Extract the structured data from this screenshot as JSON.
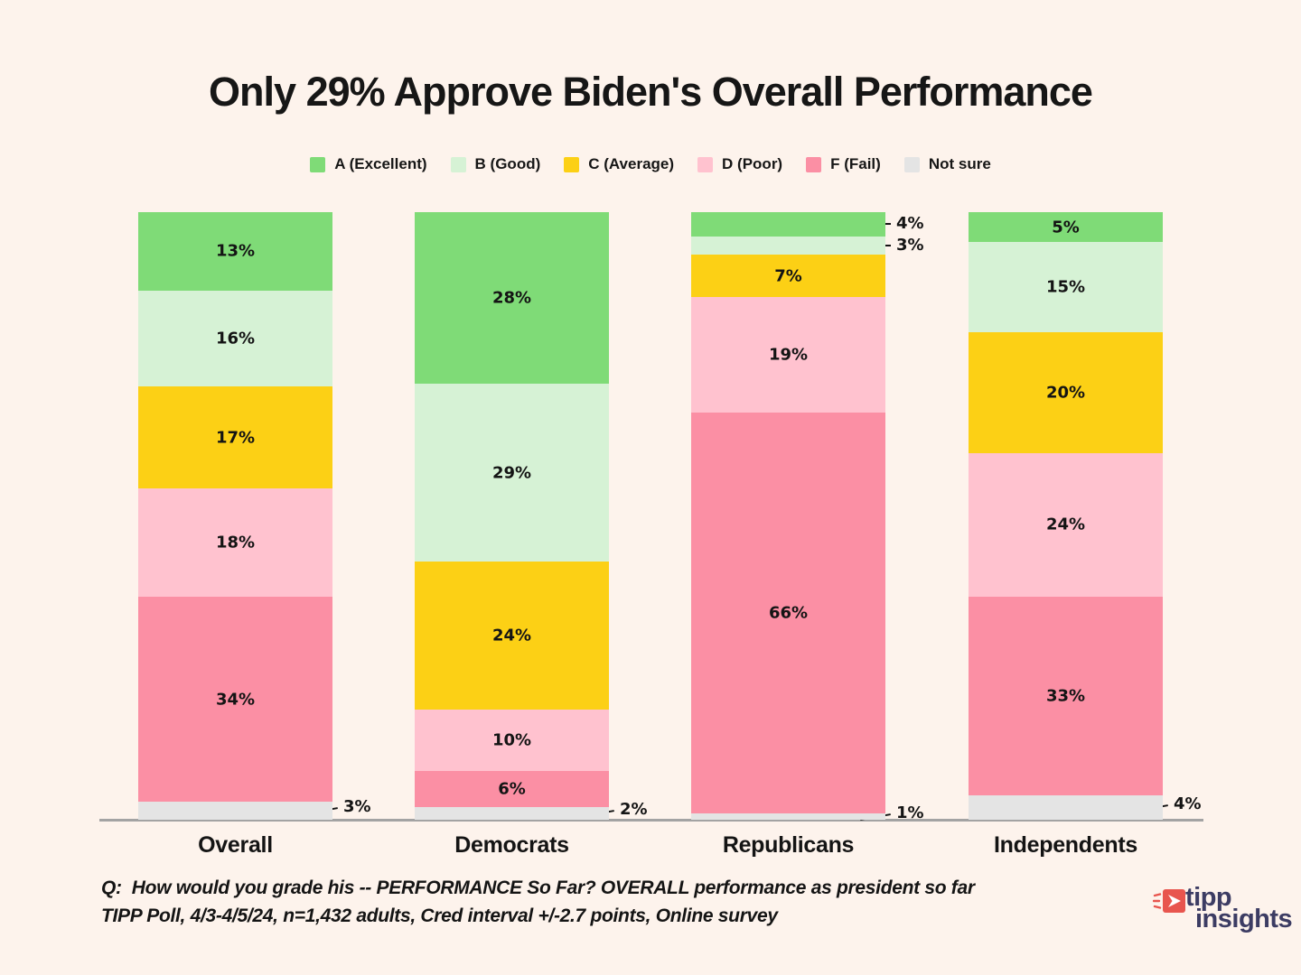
{
  "colors": {
    "background": "#fdf3ec",
    "text": "#141414",
    "axis_line": "#a3a3a3",
    "logo_red": "#e8554e",
    "logo_navy": "#3c3c63"
  },
  "chart_data": {
    "type": "bar",
    "subtype": "stacked-percent-columns",
    "title": "Only 29% Approve Biden's Overall Performance",
    "legend_position": "top",
    "grid": false,
    "normalized_bar_height": true,
    "categories": [
      "Overall",
      "Democrats",
      "Republicans",
      "Independents"
    ],
    "series": [
      {
        "name": "A (Excellent)",
        "color": "#7fdb77",
        "values": [
          13,
          28,
          4,
          5
        ]
      },
      {
        "name": "B (Good)",
        "color": "#d6f2d5",
        "values": [
          16,
          29,
          3,
          15
        ]
      },
      {
        "name": "C (Average)",
        "color": "#fcd015",
        "values": [
          17,
          24,
          7,
          20
        ]
      },
      {
        "name": "D (Poor)",
        "color": "#ffc2cf",
        "values": [
          18,
          10,
          19,
          24
        ]
      },
      {
        "name": "F (Fail)",
        "color": "#fb8fa4",
        "values": [
          34,
          6,
          66,
          33
        ]
      },
      {
        "name": "Not sure",
        "color": "#e4e4e4",
        "values": [
          3,
          2,
          1,
          4
        ]
      }
    ],
    "value_suffix": "%",
    "outside_labels": [
      [
        0,
        5
      ],
      [
        1,
        5
      ],
      [
        2,
        0
      ],
      [
        2,
        1
      ],
      [
        2,
        5
      ],
      [
        3,
        5
      ]
    ]
  },
  "footer": {
    "question_line": "Q:  How would you grade his -- PERFORMANCE So Far? OVERALL performance as president so far",
    "source_line": "TIPP Poll, 4/3-4/5/24, n=1,432 adults, Cred interval +/-2.7 points, Online survey"
  },
  "logo": {
    "line1": "tipp",
    "line2": "insights"
  }
}
